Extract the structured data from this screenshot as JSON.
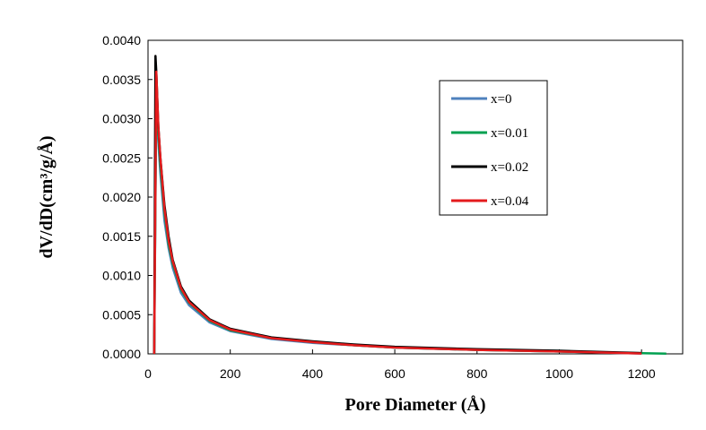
{
  "chart_data": {
    "type": "line",
    "xlabel": "Pore Diameter (Å)",
    "ylabel": "dV/dD(cm³/g/Å)",
    "xlim": [
      0,
      1300
    ],
    "ylim": [
      0,
      0.004
    ],
    "x_ticks": [
      "0",
      "200",
      "400",
      "600",
      "800",
      "1000",
      "1200"
    ],
    "y_ticks": [
      "0.0000",
      "0.0005",
      "0.0010",
      "0.0015",
      "0.0020",
      "0.0025",
      "0.0030",
      "0.0035",
      "0.0040"
    ],
    "grid": false,
    "legend_position": "top-right",
    "series": [
      {
        "name": "x=0",
        "color": "#4F81BD",
        "x": [
          15,
          20,
          25,
          30,
          40,
          50,
          60,
          80,
          100,
          150,
          200,
          300,
          400,
          500,
          600,
          800,
          1000,
          1200
        ],
        "y": [
          0,
          0.0033,
          0.0027,
          0.0023,
          0.0017,
          0.00135,
          0.0011,
          0.00078,
          0.00062,
          0.0004,
          0.00029,
          0.00019,
          0.00014,
          0.00011,
          8e-05,
          5e-05,
          3e-05,
          5e-06
        ]
      },
      {
        "name": "x=0.01",
        "color": "#00A050",
        "x": [
          15,
          20,
          25,
          30,
          40,
          50,
          60,
          80,
          100,
          150,
          200,
          300,
          400,
          500,
          600,
          800,
          1000,
          1200,
          1260
        ],
        "y": [
          0,
          0.0034,
          0.0028,
          0.0024,
          0.0018,
          0.0014,
          0.00115,
          0.00082,
          0.00065,
          0.00042,
          0.0003,
          0.0002,
          0.00015,
          0.00011,
          8e-05,
          5e-05,
          3e-05,
          8e-06,
          2e-06
        ]
      },
      {
        "name": "x=0.02",
        "color": "#000000",
        "x": [
          15,
          18,
          20,
          25,
          30,
          40,
          50,
          60,
          80,
          100,
          150,
          200,
          300,
          400,
          500,
          600,
          800,
          1000,
          1200
        ],
        "y": [
          0,
          0.0038,
          0.0036,
          0.0029,
          0.0025,
          0.0019,
          0.0015,
          0.0012,
          0.00086,
          0.00068,
          0.00044,
          0.00032,
          0.00021,
          0.00016,
          0.00012,
          9e-05,
          6e-05,
          4e-05,
          1e-05
        ]
      },
      {
        "name": "x=0.04",
        "color": "#E41A1C",
        "x": [
          15,
          20,
          25,
          30,
          40,
          50,
          60,
          80,
          100,
          150,
          200,
          300,
          400,
          500,
          600,
          800,
          1000,
          1200
        ],
        "y": [
          0,
          0.0036,
          0.0029,
          0.0025,
          0.00185,
          0.00145,
          0.00118,
          0.00084,
          0.00066,
          0.00043,
          0.00031,
          0.0002,
          0.00015,
          0.00011,
          8e-05,
          5e-05,
          3e-05,
          5e-06
        ]
      }
    ]
  }
}
